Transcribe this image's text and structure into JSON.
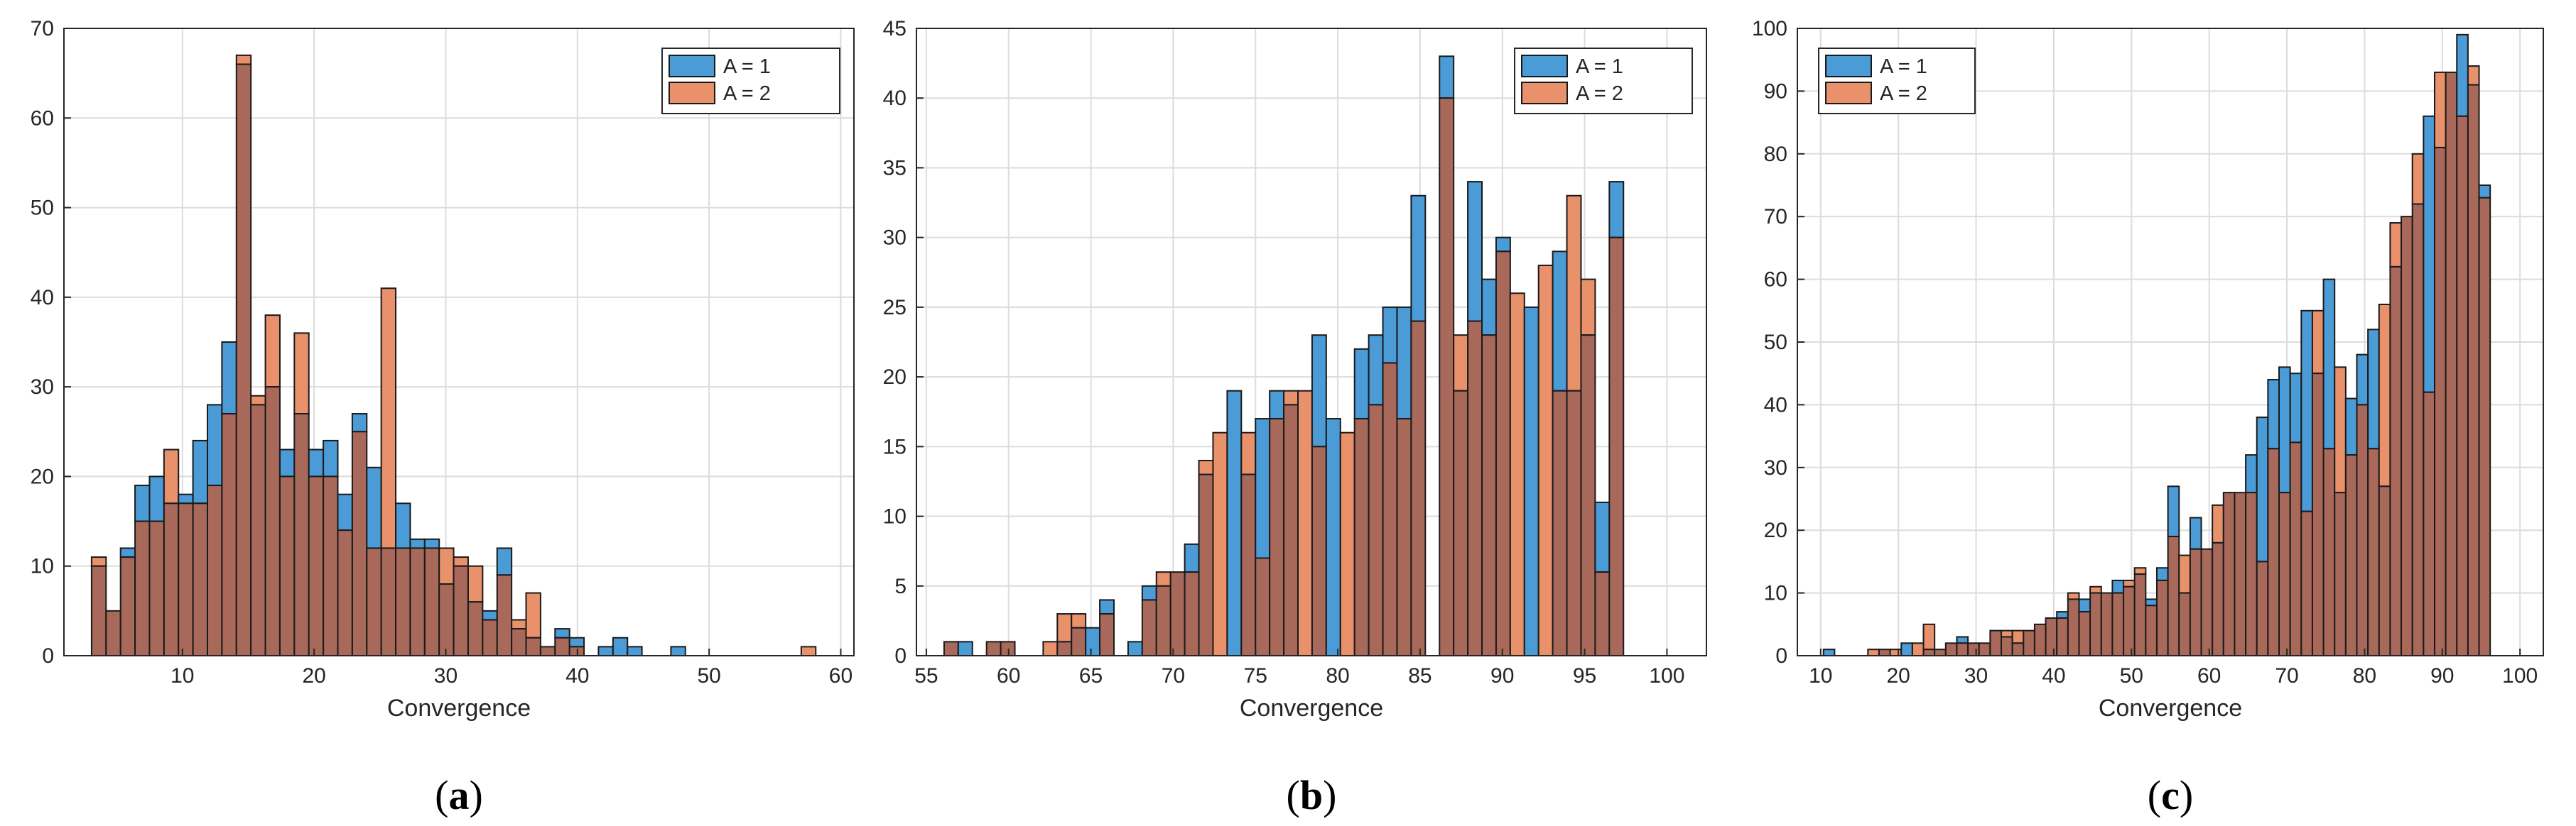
{
  "colors": {
    "series1": "#4a9bd6",
    "series2": "#e8916a",
    "overlap": "#a8695a",
    "grid": "#dcdcdc",
    "axis": "#262626"
  },
  "chart_data": [
    {
      "id": "a",
      "caption_letter": "a",
      "type": "histogram-overlay",
      "xlabel": "Convergence",
      "ylabel": "",
      "xlim": [
        1,
        61
      ],
      "ylim": [
        0,
        70
      ],
      "xticks": [
        10,
        20,
        30,
        40,
        50,
        60
      ],
      "yticks": [
        0,
        10,
        20,
        30,
        40,
        50,
        60,
        70
      ],
      "bin_width": 1.1,
      "legend_position": "top-right",
      "series": [
        {
          "name": "A = 1",
          "values": [
            10,
            5,
            12,
            19,
            20,
            17,
            18,
            24,
            28,
            35,
            66,
            28,
            30,
            23,
            27,
            23,
            24,
            18,
            27,
            21,
            12,
            17,
            13,
            13,
            8,
            10,
            6,
            5,
            12,
            3,
            2,
            1,
            3,
            2,
            0,
            1,
            2,
            1,
            0,
            0,
            1,
            0,
            0,
            0,
            0,
            0,
            0,
            0,
            0,
            0
          ]
        },
        {
          "name": "A = 2",
          "values": [
            11,
            5,
            11,
            15,
            15,
            23,
            17,
            17,
            19,
            27,
            67,
            29,
            38,
            20,
            36,
            20,
            20,
            14,
            25,
            12,
            41,
            12,
            12,
            12,
            12,
            11,
            10,
            4,
            9,
            4,
            7,
            1,
            2,
            1,
            0,
            0,
            0,
            0,
            0,
            0,
            0,
            0,
            0,
            0,
            0,
            0,
            0,
            0,
            0,
            1
          ]
        }
      ]
    },
    {
      "id": "b",
      "caption_letter": "b",
      "type": "histogram-overlay",
      "xlabel": "Convergence",
      "ylabel": "",
      "xlim": [
        54.4,
        102.4
      ],
      "ylim": [
        0,
        45
      ],
      "xticks": [
        55,
        60,
        65,
        70,
        75,
        80,
        85,
        90,
        95,
        100
      ],
      "yticks": [
        0,
        5,
        10,
        15,
        20,
        25,
        30,
        35,
        40,
        45
      ],
      "bin_width": 0.86,
      "legend_position": "top-right",
      "series": [
        {
          "name": "A = 1",
          "values": [
            1,
            1,
            0,
            1,
            1,
            0,
            0,
            0,
            1,
            2,
            2,
            4,
            0,
            1,
            5,
            5,
            6,
            8,
            13,
            0,
            19,
            13,
            17,
            19,
            18,
            0,
            23,
            17,
            0,
            22,
            23,
            25,
            25,
            33,
            0,
            43,
            19,
            34,
            27,
            30,
            0,
            25,
            0,
            29,
            19,
            23,
            11,
            34
          ]
        },
        {
          "name": "A = 2",
          "values": [
            1,
            0,
            0,
            1,
            1,
            0,
            0,
            1,
            3,
            3,
            0,
            3,
            0,
            0,
            4,
            6,
            6,
            6,
            14,
            16,
            0,
            16,
            7,
            17,
            19,
            19,
            15,
            0,
            16,
            17,
            18,
            21,
            17,
            24,
            0,
            40,
            23,
            24,
            23,
            29,
            26,
            0,
            28,
            19,
            33,
            27,
            6,
            30
          ]
        }
      ]
    },
    {
      "id": "c",
      "caption_letter": "c",
      "type": "histogram-overlay",
      "xlabel": "Convergence",
      "ylabel": "",
      "xlim": [
        7,
        103
      ],
      "ylim": [
        0,
        100
      ],
      "xticks": [
        10,
        20,
        30,
        40,
        50,
        60,
        70,
        80,
        90,
        100
      ],
      "yticks": [
        0,
        10,
        20,
        30,
        40,
        50,
        60,
        70,
        80,
        90,
        100
      ],
      "bin_width": 1.43,
      "legend_position": "top-left",
      "series": [
        {
          "name": "A = 1",
          "values": [
            1,
            0,
            0,
            0,
            0,
            1,
            0,
            2,
            0,
            1,
            1,
            2,
            3,
            2,
            2,
            4,
            3,
            2,
            4,
            5,
            6,
            7,
            9,
            9,
            10,
            10,
            12,
            11,
            13,
            9,
            14,
            27,
            10,
            22,
            17,
            18,
            26,
            26,
            32,
            38,
            44,
            46,
            45,
            55,
            45,
            60,
            26,
            41,
            48,
            52,
            27,
            62,
            70,
            72,
            86,
            81,
            93,
            99,
            91,
            75
          ]
        },
        {
          "name": "A = 2",
          "values": [
            0,
            0,
            0,
            0,
            1,
            1,
            1,
            0,
            2,
            5,
            1,
            2,
            2,
            2,
            2,
            4,
            4,
            4,
            4,
            5,
            6,
            6,
            10,
            7,
            11,
            10,
            10,
            12,
            14,
            8,
            12,
            19,
            16,
            17,
            17,
            24,
            26,
            26,
            26,
            15,
            33,
            26,
            34,
            23,
            55,
            33,
            46,
            32,
            40,
            33,
            56,
            69,
            70,
            80,
            42,
            93,
            93,
            86,
            94,
            73
          ]
        }
      ]
    }
  ]
}
